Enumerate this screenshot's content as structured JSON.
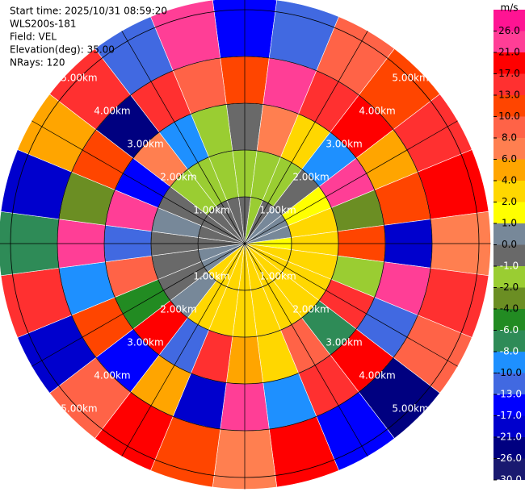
{
  "chart_data": {
    "type": "ppi",
    "header": [
      "Start time: 2025/10/31 08:59:20",
      "WLS200s-181",
      "Field: VEL",
      "Elevation(deg): 35.00",
      "NRays: 120"
    ],
    "range_edges": [
      0,
      1,
      2,
      3,
      4,
      5.25
    ],
    "range_ticks": [
      {
        "value": 1,
        "label": "1.00km"
      },
      {
        "value": 2,
        "label": "2.00km"
      },
      {
        "value": 3,
        "label": "3.00km"
      },
      {
        "value": 4,
        "label": "4.00km"
      },
      {
        "value": 5,
        "label": "5.00km"
      }
    ],
    "values": [
      [
        -1,
        -2,
        -0.5,
        12,
        -15
      ],
      [
        -1.5,
        -2,
        7,
        22,
        -11
      ],
      [
        -0.5,
        -1.5,
        3,
        14,
        9
      ],
      [
        0.5,
        -0.5,
        -9,
        18,
        11
      ],
      [
        0.5,
        1.5,
        24,
        5,
        14
      ],
      [
        0.5,
        2.5,
        -3,
        12,
        19
      ],
      [
        1.5,
        3,
        11,
        -19,
        7
      ],
      [
        2.5,
        3,
        -1.5,
        23,
        15
      ],
      [
        3,
        2.5,
        16,
        -12,
        9
      ],
      [
        3,
        3,
        -7,
        20,
        -23
      ],
      [
        3,
        3,
        9,
        14,
        -16
      ],
      [
        3,
        3,
        2.5,
        -9,
        18
      ],
      [
        3,
        3,
        5,
        22,
        7
      ],
      [
        3,
        3,
        14,
        -18,
        12
      ],
      [
        3,
        2.5,
        -11,
        4.5,
        20
      ],
      [
        2.5,
        0.5,
        19,
        -14,
        9
      ],
      [
        0.5,
        -0.5,
        -5,
        11,
        -20
      ],
      [
        0.5,
        -0.5,
        8,
        -9,
        14
      ],
      [
        -0.5,
        -0.5,
        -13,
        23,
        -7
      ],
      [
        -0.5,
        0.5,
        21,
        -3,
        -18
      ],
      [
        -0.5,
        -0.5,
        -17,
        12,
        5
      ],
      [
        -0.5,
        -1.5,
        6,
        -24,
        13
      ],
      [
        -1,
        -1.5,
        -9,
        15,
        -11
      ],
      [
        -1,
        -2,
        -1.5,
        9,
        22
      ]
    ],
    "colorbar_title": "m/s",
    "clim": [
      -30,
      30
    ],
    "cticks": [
      {
        "value": -30,
        "label": "-30.0"
      },
      {
        "value": -26,
        "label": "-26.0"
      },
      {
        "value": -21,
        "label": "-21.0"
      },
      {
        "value": -17,
        "label": "-17.0"
      },
      {
        "value": -13,
        "label": "-13.0"
      },
      {
        "value": -10,
        "label": "-10.0"
      },
      {
        "value": -8,
        "label": "-8.0"
      },
      {
        "value": -6,
        "label": "-6.0"
      },
      {
        "value": -4,
        "label": "-4.0"
      },
      {
        "value": -2,
        "label": "-2.0"
      },
      {
        "value": -1,
        "label": "-1.0"
      },
      {
        "value": 0,
        "label": "0.0"
      },
      {
        "value": 1,
        "label": "1.0"
      },
      {
        "value": 2,
        "label": "2.0"
      },
      {
        "value": 4,
        "label": "4.0"
      },
      {
        "value": 6,
        "label": "6.0"
      },
      {
        "value": 8,
        "label": "8.0"
      },
      {
        "value": 10,
        "label": "10.0"
      },
      {
        "value": 13,
        "label": "13.0"
      },
      {
        "value": 17,
        "label": "17.0"
      },
      {
        "value": 21,
        "label": "21.0"
      },
      {
        "value": 26,
        "label": "26.0"
      }
    ],
    "colors": [
      "#191970",
      "#000080",
      "#0000cd",
      "#0000ff",
      "#4169e1",
      "#1e90ff",
      "#2e8b57",
      "#228b22",
      "#6b8e23",
      "#9acd32",
      "#696969",
      "#778899",
      "#ffff00",
      "#ffd700",
      "#ffa500",
      "#ff7f50",
      "#ff6347",
      "#ff4500",
      "#ff3030",
      "#ff0000",
      "#ff3e96",
      "#ff1493"
    ]
  }
}
